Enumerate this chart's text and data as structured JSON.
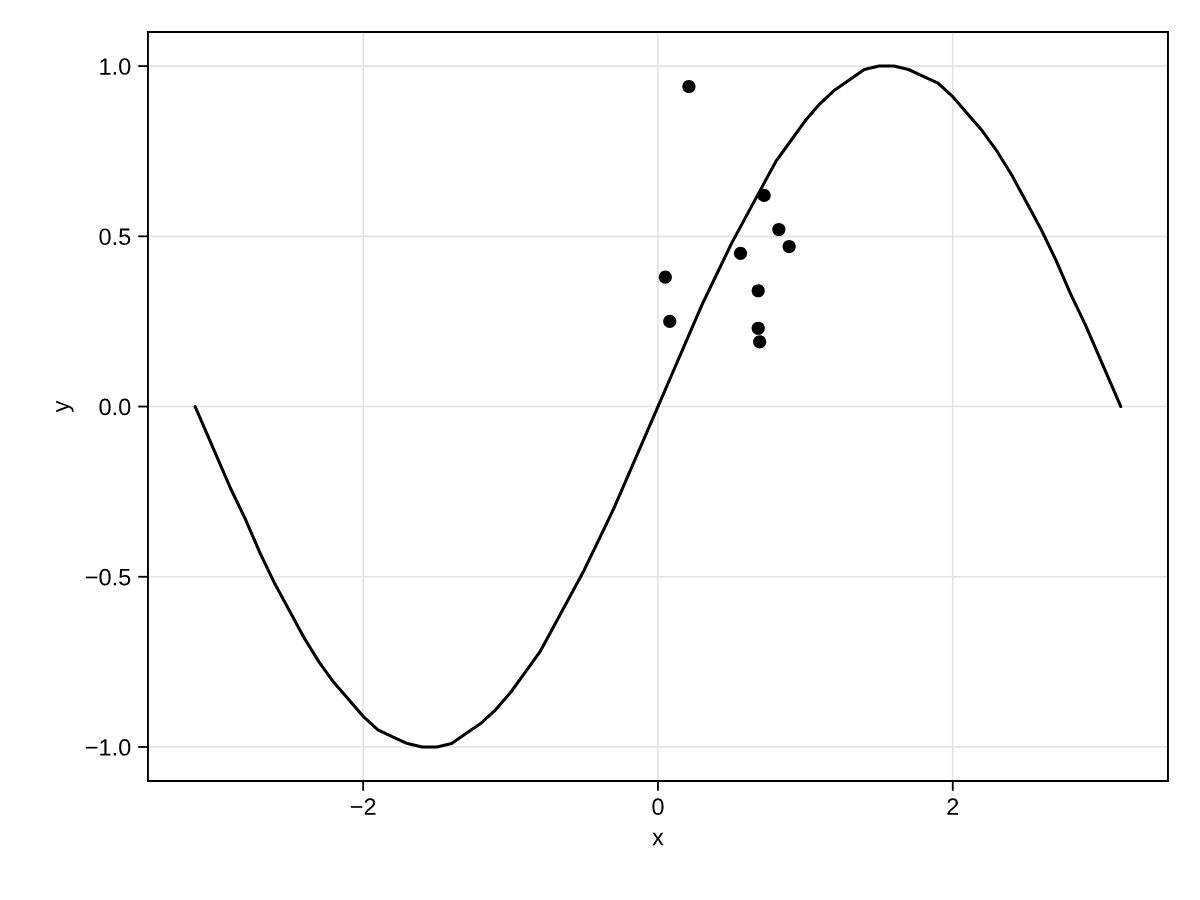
{
  "chart_data": {
    "type": "scatter",
    "xlabel": "x",
    "ylabel": "y",
    "xlim": [
      -3.46,
      3.46
    ],
    "ylim": [
      -1.1,
      1.1
    ],
    "xticks": [
      {
        "value": -2,
        "label": "−2"
      },
      0,
      2
    ],
    "yticks": [
      {
        "value": -1.0,
        "label": "−1.0"
      },
      {
        "value": -0.5,
        "label": "−0.5"
      },
      {
        "value": 0.0,
        "label": "0.0"
      },
      {
        "value": 0.5,
        "label": "0.5"
      },
      {
        "value": 1.0,
        "label": "1.0"
      }
    ],
    "grid": true,
    "series": [
      {
        "type": "line",
        "color": "#000000",
        "line_style": "solid",
        "x": [
          -3.14,
          -3.1,
          -3.0,
          -2.9,
          -2.8,
          -2.7,
          -2.6,
          -2.5,
          -2.4,
          -2.3,
          -2.2,
          -2.1,
          -2.0,
          -1.9,
          -1.8,
          -1.7,
          -1.6,
          -1.5,
          -1.4,
          -1.3,
          -1.2,
          -1.1,
          -1.0,
          -0.9,
          -0.8,
          -0.7,
          -0.6,
          -0.5,
          -0.4,
          -0.3,
          -0.2,
          -0.1,
          0.0,
          0.1,
          0.2,
          0.3,
          0.4,
          0.5,
          0.6,
          0.7,
          0.8,
          0.9,
          1.0,
          1.1,
          1.2,
          1.3,
          1.4,
          1.5,
          1.6,
          1.7,
          1.8,
          1.9,
          2.0,
          2.1,
          2.2,
          2.3,
          2.4,
          2.5,
          2.6,
          2.7,
          2.8,
          2.9,
          3.0,
          3.1,
          3.14
        ],
        "values": [
          0.0,
          -0.04,
          -0.14,
          -0.24,
          -0.33,
          -0.43,
          -0.52,
          -0.6,
          -0.68,
          -0.75,
          -0.81,
          -0.86,
          -0.91,
          -0.95,
          -0.97,
          -0.99,
          -1.0,
          -1.0,
          -0.99,
          -0.96,
          -0.93,
          -0.89,
          -0.84,
          -0.78,
          -0.72,
          -0.64,
          -0.56,
          -0.48,
          -0.39,
          -0.3,
          -0.2,
          -0.1,
          0.0,
          0.1,
          0.2,
          0.3,
          0.39,
          0.48,
          0.56,
          0.64,
          0.72,
          0.78,
          0.84,
          0.89,
          0.93,
          0.96,
          0.99,
          1.0,
          1.0,
          0.99,
          0.97,
          0.95,
          0.91,
          0.86,
          0.81,
          0.75,
          0.68,
          0.6,
          0.52,
          0.43,
          0.33,
          0.24,
          0.14,
          0.04,
          0.0
        ]
      },
      {
        "color": "#000000",
        "marker": "circle",
        "x": [
          0.21,
          0.72,
          0.82,
          0.89,
          0.56,
          0.05,
          0.68,
          0.08,
          0.68,
          0.69
        ],
        "values": [
          0.94,
          0.62,
          0.52,
          0.47,
          0.45,
          0.38,
          0.34,
          0.25,
          0.23,
          0.19
        ]
      }
    ]
  }
}
